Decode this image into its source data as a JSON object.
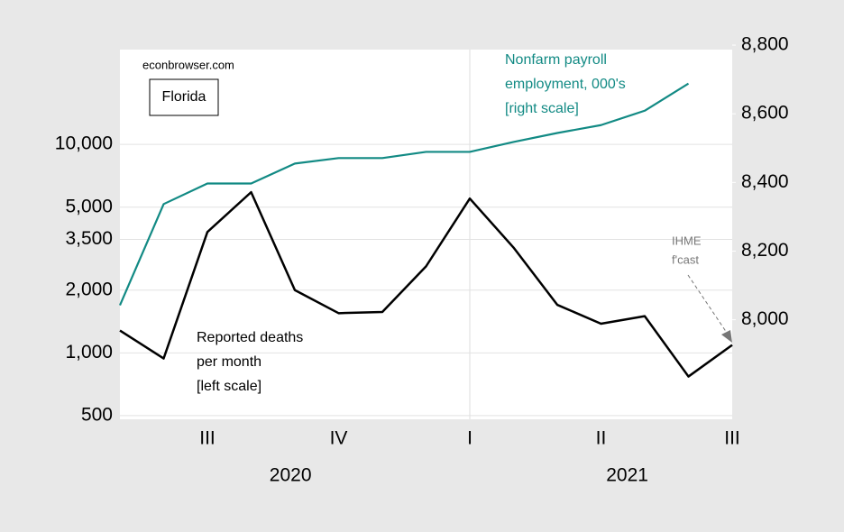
{
  "chart_data": {
    "type": "line",
    "note_source": "econbrowser.com",
    "note_region": "Florida",
    "categories": [
      null,
      null,
      "III",
      null,
      null,
      "IV",
      null,
      null,
      "I",
      null,
      null,
      "II",
      null,
      null,
      "III"
    ],
    "years": [
      "2020",
      "2021"
    ],
    "series": [
      {
        "name": [
          "Reported deaths",
          "per month",
          "[left scale]"
        ],
        "color": "#000000",
        "axis": "y",
        "values": [
          1280,
          940,
          3800,
          5900,
          2000,
          1550,
          1570,
          2600,
          5500,
          3200,
          1700,
          1380,
          1500,
          770,
          1090
        ]
      },
      {
        "name": [
          "Nonfarm payroll",
          "employment, 000's",
          "[right scale]"
        ],
        "color": "#128a84",
        "axis": "y2",
        "values": [
          8042,
          8337,
          8397,
          8397,
          8455,
          8471,
          8471,
          8489,
          8489,
          8518,
          8544,
          8567,
          8609,
          8688,
          null
        ]
      }
    ],
    "annotation": [
      "IHME",
      "f'cast"
    ],
    "ylog": true,
    "ylim": [
      480,
      28500
    ],
    "yticks": [
      {
        "value": 500,
        "label": "500"
      },
      {
        "value": 1000,
        "label": "1,000"
      },
      {
        "value": 2000,
        "label": "2,000"
      },
      {
        "value": 3500,
        "label": "3,500"
      },
      {
        "value": 5000,
        "label": "5,000"
      },
      {
        "value": 10000,
        "label": "10,000"
      }
    ],
    "y2lim": [
      7710,
      8787
    ],
    "y2ticks": [
      {
        "value": 8000,
        "label": "8,000"
      },
      {
        "value": 8200,
        "label": "8,200"
      },
      {
        "value": 8400,
        "label": "8,400"
      },
      {
        "value": 8600,
        "label": "8,600"
      },
      {
        "value": 8800,
        "label": "8,800"
      }
    ],
    "grid": true
  }
}
